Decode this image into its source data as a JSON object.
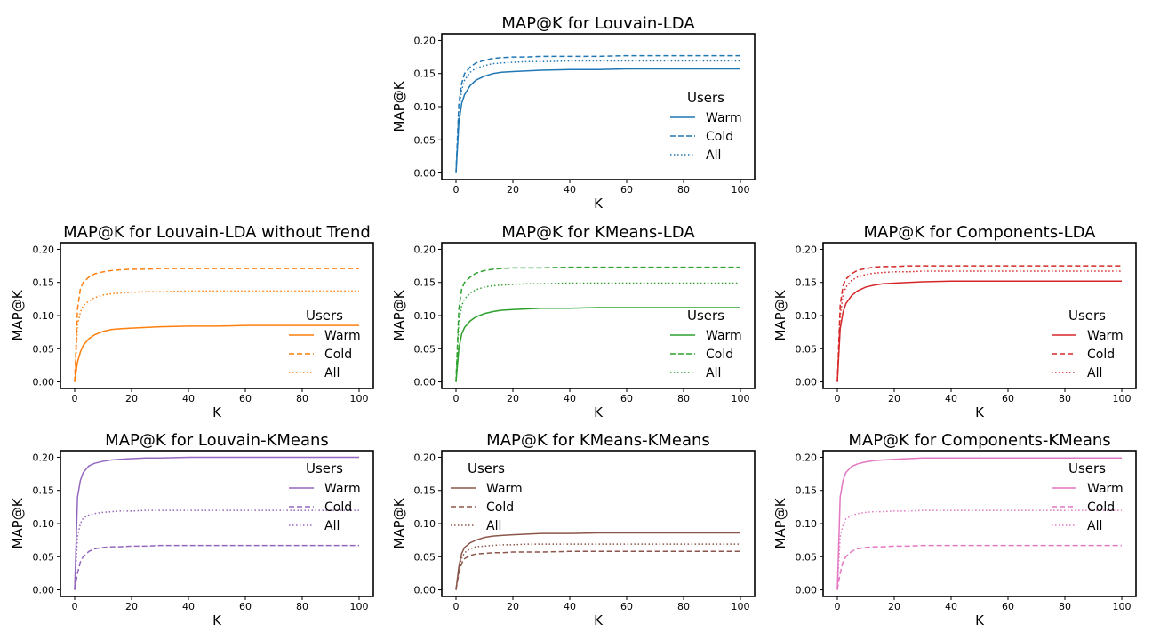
{
  "chart_data": [
    {
      "type": "line",
      "title": "MAP@K for Louvain-LDA",
      "xlabel": "K",
      "ylabel": "MAP@K",
      "xlim": [
        -5,
        105
      ],
      "ylim": [
        -0.01,
        0.21
      ],
      "xticks": [
        0,
        20,
        40,
        60,
        80,
        100
      ],
      "yticks": [
        "0.00",
        "0.05",
        "0.10",
        "0.15",
        "0.20"
      ],
      "legend": {
        "title": "Users",
        "location": "center right"
      },
      "x": [
        0,
        1,
        2,
        3,
        5,
        7,
        10,
        13,
        16,
        20,
        25,
        30,
        40,
        50,
        60,
        70,
        80,
        90,
        100
      ],
      "series": [
        {
          "name": "Warm",
          "style": "solid",
          "color": "#1f77b4",
          "values": [
            0.0,
            0.075,
            0.105,
            0.118,
            0.132,
            0.14,
            0.146,
            0.15,
            0.152,
            0.153,
            0.154,
            0.155,
            0.156,
            0.156,
            0.157,
            0.157,
            0.157,
            0.157,
            0.157
          ]
        },
        {
          "name": "Cold",
          "style": "dashed",
          "color": "#1f77b4",
          "values": [
            0.0,
            0.105,
            0.135,
            0.15,
            0.16,
            0.166,
            0.17,
            0.173,
            0.174,
            0.175,
            0.175,
            0.176,
            0.176,
            0.176,
            0.177,
            0.177,
            0.177,
            0.177,
            0.177
          ]
        },
        {
          "name": "All",
          "style": "dotted",
          "color": "#1f77b4",
          "values": [
            0.0,
            0.095,
            0.125,
            0.14,
            0.152,
            0.158,
            0.162,
            0.165,
            0.166,
            0.167,
            0.168,
            0.168,
            0.169,
            0.169,
            0.169,
            0.169,
            0.169,
            0.169,
            0.169
          ]
        }
      ]
    },
    {
      "type": "line",
      "title": "MAP@K for Louvain-LDA without Trend",
      "xlabel": "K",
      "ylabel": "MAP@K",
      "xlim": [
        -5,
        105
      ],
      "ylim": [
        -0.01,
        0.21
      ],
      "xticks": [
        0,
        20,
        40,
        60,
        80,
        100
      ],
      "yticks": [
        "0.00",
        "0.05",
        "0.10",
        "0.15",
        "0.20"
      ],
      "legend": {
        "title": "Users",
        "location": "lower right"
      },
      "x": [
        0,
        1,
        2,
        3,
        5,
        7,
        10,
        13,
        16,
        20,
        25,
        30,
        40,
        50,
        60,
        70,
        80,
        90,
        100
      ],
      "series": [
        {
          "name": "Warm",
          "style": "solid",
          "color": "#ff7f0e",
          "values": [
            0.0,
            0.03,
            0.045,
            0.055,
            0.065,
            0.071,
            0.076,
            0.079,
            0.08,
            0.081,
            0.082,
            0.083,
            0.084,
            0.084,
            0.085,
            0.085,
            0.085,
            0.085,
            0.085
          ]
        },
        {
          "name": "Cold",
          "style": "dashed",
          "color": "#ff7f0e",
          "values": [
            0.0,
            0.11,
            0.14,
            0.15,
            0.158,
            0.163,
            0.166,
            0.168,
            0.169,
            0.17,
            0.17,
            0.171,
            0.171,
            0.171,
            0.171,
            0.171,
            0.171,
            0.171,
            0.171
          ]
        },
        {
          "name": "All",
          "style": "dotted",
          "color": "#ff7f0e",
          "values": [
            0.0,
            0.085,
            0.105,
            0.115,
            0.122,
            0.127,
            0.131,
            0.133,
            0.134,
            0.135,
            0.136,
            0.136,
            0.137,
            0.137,
            0.137,
            0.137,
            0.137,
            0.137,
            0.137
          ]
        }
      ]
    },
    {
      "type": "line",
      "title": "MAP@K for KMeans-LDA",
      "xlabel": "K",
      "ylabel": "MAP@K",
      "xlim": [
        -5,
        105
      ],
      "ylim": [
        -0.01,
        0.21
      ],
      "xticks": [
        0,
        20,
        40,
        60,
        80,
        100
      ],
      "yticks": [
        "0.00",
        "0.05",
        "0.10",
        "0.15",
        "0.20"
      ],
      "legend": {
        "title": "Users",
        "location": "lower right"
      },
      "x": [
        0,
        1,
        2,
        3,
        5,
        7,
        10,
        13,
        16,
        20,
        25,
        30,
        40,
        50,
        60,
        70,
        80,
        90,
        100
      ],
      "series": [
        {
          "name": "Warm",
          "style": "solid",
          "color": "#2ca02c",
          "values": [
            0.0,
            0.05,
            0.072,
            0.082,
            0.092,
            0.098,
            0.103,
            0.106,
            0.108,
            0.109,
            0.11,
            0.111,
            0.111,
            0.112,
            0.112,
            0.112,
            0.112,
            0.112,
            0.112
          ]
        },
        {
          "name": "Cold",
          "style": "dashed",
          "color": "#2ca02c",
          "values": [
            0.0,
            0.11,
            0.14,
            0.15,
            0.158,
            0.164,
            0.168,
            0.17,
            0.171,
            0.172,
            0.172,
            0.172,
            0.173,
            0.173,
            0.173,
            0.173,
            0.173,
            0.173,
            0.173
          ]
        },
        {
          "name": "All",
          "style": "dotted",
          "color": "#2ca02c",
          "values": [
            0.0,
            0.09,
            0.115,
            0.125,
            0.134,
            0.139,
            0.143,
            0.145,
            0.146,
            0.147,
            0.148,
            0.148,
            0.149,
            0.149,
            0.149,
            0.149,
            0.149,
            0.149,
            0.149
          ]
        }
      ]
    },
    {
      "type": "line",
      "title": "MAP@K for Components-LDA",
      "xlabel": "K",
      "ylabel": "MAP@K",
      "xlim": [
        -5,
        105
      ],
      "ylim": [
        -0.01,
        0.21
      ],
      "xticks": [
        0,
        20,
        40,
        60,
        80,
        100
      ],
      "yticks": [
        "0.00",
        "0.05",
        "0.10",
        "0.15",
        "0.20"
      ],
      "legend": {
        "title": "Users",
        "location": "lower right"
      },
      "x": [
        0,
        1,
        2,
        3,
        5,
        7,
        10,
        13,
        16,
        20,
        25,
        30,
        40,
        50,
        60,
        70,
        80,
        90,
        100
      ],
      "series": [
        {
          "name": "Warm",
          "style": "solid",
          "color": "#d62728",
          "values": [
            0.0,
            0.08,
            0.105,
            0.118,
            0.13,
            0.137,
            0.143,
            0.146,
            0.148,
            0.149,
            0.15,
            0.151,
            0.152,
            0.152,
            0.152,
            0.152,
            0.152,
            0.152,
            0.152
          ]
        },
        {
          "name": "Cold",
          "style": "dashed",
          "color": "#d62728",
          "values": [
            0.0,
            0.115,
            0.145,
            0.155,
            0.163,
            0.168,
            0.171,
            0.173,
            0.174,
            0.174,
            0.175,
            0.175,
            0.175,
            0.175,
            0.175,
            0.175,
            0.175,
            0.175,
            0.175
          ]
        },
        {
          "name": "All",
          "style": "dotted",
          "color": "#d62728",
          "values": [
            0.0,
            0.1,
            0.13,
            0.143,
            0.153,
            0.158,
            0.162,
            0.164,
            0.165,
            0.166,
            0.166,
            0.167,
            0.167,
            0.167,
            0.167,
            0.167,
            0.167,
            0.167,
            0.167
          ]
        }
      ]
    },
    {
      "type": "line",
      "title": "MAP@K for Louvain-KMeans",
      "xlabel": "K",
      "ylabel": "MAP@K",
      "xlim": [
        -5,
        105
      ],
      "ylim": [
        -0.01,
        0.21
      ],
      "xticks": [
        0,
        20,
        40,
        60,
        80,
        100
      ],
      "yticks": [
        "0.00",
        "0.05",
        "0.10",
        "0.15",
        "0.20"
      ],
      "legend": {
        "title": "Users",
        "location": "upper right"
      },
      "x": [
        0,
        1,
        2,
        3,
        5,
        7,
        10,
        13,
        16,
        20,
        25,
        30,
        40,
        50,
        60,
        70,
        80,
        90,
        100
      ],
      "series": [
        {
          "name": "Warm",
          "style": "solid",
          "color": "#9467bd",
          "values": [
            0.0,
            0.14,
            0.165,
            0.177,
            0.187,
            0.191,
            0.194,
            0.196,
            0.197,
            0.198,
            0.199,
            0.199,
            0.2,
            0.2,
            0.2,
            0.2,
            0.2,
            0.2,
            0.2
          ]
        },
        {
          "name": "Cold",
          "style": "dashed",
          "color": "#9467bd",
          "values": [
            0.0,
            0.025,
            0.042,
            0.05,
            0.058,
            0.062,
            0.064,
            0.065,
            0.065,
            0.066,
            0.066,
            0.067,
            0.067,
            0.067,
            0.067,
            0.067,
            0.067,
            0.067,
            0.067
          ]
        },
        {
          "name": "All",
          "style": "dotted",
          "color": "#9467bd",
          "values": [
            0.0,
            0.08,
            0.1,
            0.108,
            0.113,
            0.115,
            0.117,
            0.118,
            0.119,
            0.119,
            0.12,
            0.12,
            0.12,
            0.12,
            0.12,
            0.12,
            0.12,
            0.12,
            0.12
          ]
        }
      ]
    },
    {
      "type": "line",
      "title": "MAP@K for KMeans-KMeans",
      "xlabel": "K",
      "ylabel": "MAP@K",
      "xlim": [
        -5,
        105
      ],
      "ylim": [
        -0.01,
        0.21
      ],
      "xticks": [
        0,
        20,
        40,
        60,
        80,
        100
      ],
      "yticks": [
        "0.00",
        "0.05",
        "0.10",
        "0.15",
        "0.20"
      ],
      "legend": {
        "title": "Users",
        "location": "upper left"
      },
      "x": [
        0,
        1,
        2,
        3,
        5,
        7,
        10,
        13,
        16,
        20,
        25,
        30,
        40,
        50,
        60,
        70,
        80,
        90,
        100
      ],
      "series": [
        {
          "name": "Warm",
          "style": "solid",
          "color": "#8c564b",
          "values": [
            0.0,
            0.035,
            0.055,
            0.064,
            0.071,
            0.075,
            0.079,
            0.081,
            0.082,
            0.083,
            0.084,
            0.085,
            0.085,
            0.086,
            0.086,
            0.086,
            0.086,
            0.086,
            0.086
          ]
        },
        {
          "name": "Cold",
          "style": "dashed",
          "color": "#8c564b",
          "values": [
            0.0,
            0.025,
            0.04,
            0.047,
            0.052,
            0.054,
            0.055,
            0.056,
            0.056,
            0.057,
            0.057,
            0.057,
            0.058,
            0.058,
            0.058,
            0.058,
            0.058,
            0.058,
            0.058
          ]
        },
        {
          "name": "All",
          "style": "dotted",
          "color": "#8c564b",
          "values": [
            0.0,
            0.03,
            0.048,
            0.056,
            0.062,
            0.065,
            0.066,
            0.067,
            0.068,
            0.068,
            0.069,
            0.069,
            0.069,
            0.069,
            0.069,
            0.069,
            0.069,
            0.069,
            0.069
          ]
        }
      ]
    },
    {
      "type": "line",
      "title": "MAP@K for Components-KMeans",
      "xlabel": "K",
      "ylabel": "MAP@K",
      "xlim": [
        -5,
        105
      ],
      "ylim": [
        -0.01,
        0.21
      ],
      "xticks": [
        0,
        20,
        40,
        60,
        80,
        100
      ],
      "yticks": [
        "0.00",
        "0.05",
        "0.10",
        "0.15",
        "0.20"
      ],
      "legend": {
        "title": "Users",
        "location": "upper right"
      },
      "x": [
        0,
        1,
        2,
        3,
        5,
        7,
        10,
        13,
        16,
        20,
        25,
        30,
        40,
        50,
        60,
        70,
        80,
        90,
        100
      ],
      "series": [
        {
          "name": "Warm",
          "style": "solid",
          "color": "#e377c2",
          "values": [
            0.0,
            0.14,
            0.165,
            0.177,
            0.186,
            0.19,
            0.193,
            0.195,
            0.196,
            0.197,
            0.198,
            0.199,
            0.199,
            0.199,
            0.199,
            0.199,
            0.199,
            0.199,
            0.199
          ]
        },
        {
          "name": "Cold",
          "style": "dashed",
          "color": "#e377c2",
          "values": [
            0.0,
            0.025,
            0.042,
            0.05,
            0.058,
            0.062,
            0.064,
            0.065,
            0.065,
            0.066,
            0.066,
            0.067,
            0.067,
            0.067,
            0.067,
            0.067,
            0.067,
            0.067,
            0.067
          ]
        },
        {
          "name": "All",
          "style": "dotted",
          "color": "#e377c2",
          "values": [
            0.0,
            0.08,
            0.098,
            0.107,
            0.112,
            0.115,
            0.117,
            0.118,
            0.118,
            0.119,
            0.119,
            0.12,
            0.12,
            0.12,
            0.12,
            0.12,
            0.12,
            0.12,
            0.12
          ]
        }
      ]
    }
  ]
}
